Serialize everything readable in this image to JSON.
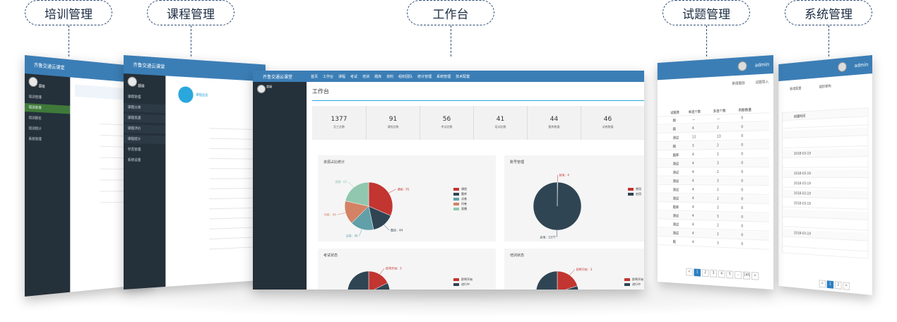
{
  "labels": {
    "training": "培训管理",
    "course": "课程管理",
    "workbench": "工作台",
    "questions": "试题管理",
    "system": "系统管理"
  },
  "app": {
    "brand": "齐鲁交通云课堂",
    "admin": "admin"
  },
  "main": {
    "nav": [
      "首页",
      "工作台",
      "课程",
      "考试",
      "培训",
      "题库",
      "资料",
      "组织团队",
      "统计管理",
      "系统管理",
      "技术配置"
    ],
    "user": "超级",
    "page_title": "工作台",
    "stats": [
      {
        "value": "1377",
        "label": "员工总数"
      },
      {
        "value": "91",
        "label": "课程总数"
      },
      {
        "value": "56",
        "label": "考试总数"
      },
      {
        "value": "41",
        "label": "培训总数"
      },
      {
        "value": "44",
        "label": "题库数量"
      },
      {
        "value": "46",
        "label": "试卷数量"
      }
    ],
    "panels": {
      "resource_title": "资源占比统计",
      "account_title": "账号管理",
      "exam_title": "考试状态",
      "train_title": "培训状态"
    }
  },
  "chart_data": [
    {
      "type": "pie",
      "title": "资源占比统计",
      "categories": [
        "课程",
        "题库",
        "试卷",
        "问卷",
        "直播"
      ],
      "values": [
        91,
        44,
        46,
        46,
        62
      ],
      "colors": [
        "#c23531",
        "#2f4554",
        "#61a0a8",
        "#d48265",
        "#91c7ae"
      ],
      "slice_labels": [
        "课程：91",
        "题库：44",
        "试卷：46",
        "问卷：46",
        "直播：62"
      ]
    },
    {
      "type": "pie",
      "title": "账号管理",
      "categories": [
        "禁用",
        "启用"
      ],
      "values": [
        4,
        1377
      ],
      "colors": [
        "#c23531",
        "#2f4554"
      ],
      "slice_labels": [
        "禁用：4",
        "启用：1377"
      ]
    },
    {
      "type": "pie",
      "title": "考试状态",
      "categories": [
        "即将开始",
        "进行中"
      ],
      "values": [
        3,
        14
      ],
      "colors": [
        "#c23531",
        "#2f4554"
      ],
      "slice_labels": [
        "即将开始：3",
        "进行中：14"
      ]
    },
    {
      "type": "pie",
      "title": "培训状态",
      "categories": [
        "即将开始",
        "进行中"
      ],
      "values": [
        3,
        12
      ],
      "colors": [
        "#c23531",
        "#2f4554"
      ],
      "slice_labels": [
        "即将开始：3",
        "进行中：12"
      ]
    }
  ],
  "questions_screen": {
    "add_button": "新增题目",
    "import_button": "试题导入",
    "columns": [
      "试题类",
      "单选个数",
      "多选个数",
      "判断数量"
    ],
    "rows": [
      [
        "网",
        "—",
        "—",
        "0"
      ],
      [
        "网",
        "4",
        "2",
        "0"
      ],
      [
        "测试",
        "12",
        "13",
        "0"
      ],
      [
        "网",
        "3",
        "2",
        "0"
      ],
      [
        "题库",
        "4",
        "2",
        "0"
      ],
      [
        "测试",
        "4",
        "3",
        "0"
      ],
      [
        "测试",
        "4",
        "2",
        "0"
      ],
      [
        "测试",
        "4",
        "3",
        "0"
      ],
      [
        "测试",
        "4",
        "2",
        "0"
      ],
      [
        "测试",
        "4",
        "2",
        "0"
      ],
      [
        "题库",
        "4",
        "2",
        "0"
      ],
      [
        "测试",
        "4",
        "3",
        "0"
      ],
      [
        "测试",
        "4",
        "2",
        "0"
      ],
      [
        "测试",
        "4",
        "2",
        "0"
      ],
      [
        "题",
        "4",
        "3",
        "0"
      ]
    ],
    "pagination": [
      "<",
      "1",
      "2",
      "3",
      "4",
      "5",
      "...",
      "145",
      ">"
    ]
  },
  "system_screen": {
    "add_button": "新增配置",
    "import_button": "组织架构",
    "column": "创建时间",
    "dates": [
      "",
      "",
      "",
      "2018-03-19",
      "",
      "2018-03-19",
      "2018-03-19",
      "2018-03-19",
      "2018-03-19",
      "",
      "",
      "2018-03-19",
      ""
    ],
    "pagination": [
      "<",
      "1",
      "2",
      ">"
    ]
  },
  "training_screen": {
    "user": "超级",
    "menu": [
      "培训管理",
      "培训安排",
      "培训报名",
      "培训统计",
      "系统管理"
    ]
  },
  "course_screen": {
    "user": "超级",
    "menu": [
      "课程管理",
      "课程分类",
      "课程资源",
      "课程评价",
      "课程统计",
      "学员管理",
      "系统设置"
    ],
    "tab": "课程信息"
  }
}
